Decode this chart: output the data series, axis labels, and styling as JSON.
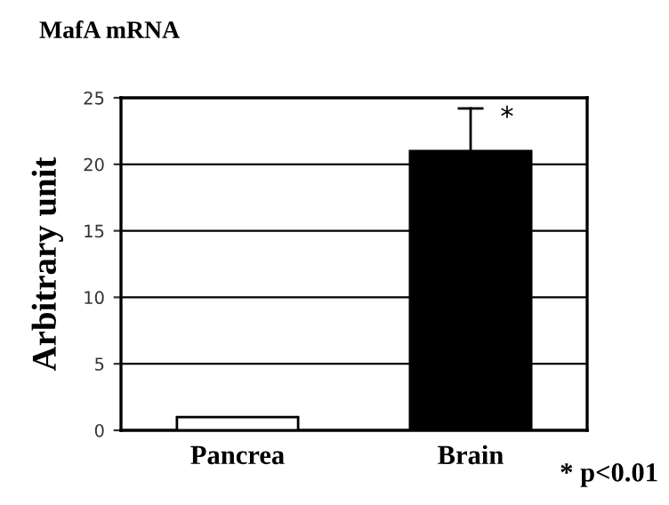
{
  "chart_data": {
    "type": "bar",
    "title": "MafA mRNA",
    "ylabel": "Arbitrary unit",
    "categories": [
      "Pancrea",
      "Brain"
    ],
    "values": [
      1.0,
      21.0
    ],
    "colors": [
      "#ffffff",
      "#000000"
    ],
    "errors": [
      null,
      [
        21.0,
        24.2
      ]
    ],
    "ylim": [
      0,
      25
    ],
    "yticks": [
      0,
      5,
      10,
      15,
      20,
      25
    ],
    "grid": "y",
    "annotations": [
      {
        "text": "*",
        "x": "Brain",
        "y": 24.2
      },
      "* p<0.01"
    ]
  }
}
